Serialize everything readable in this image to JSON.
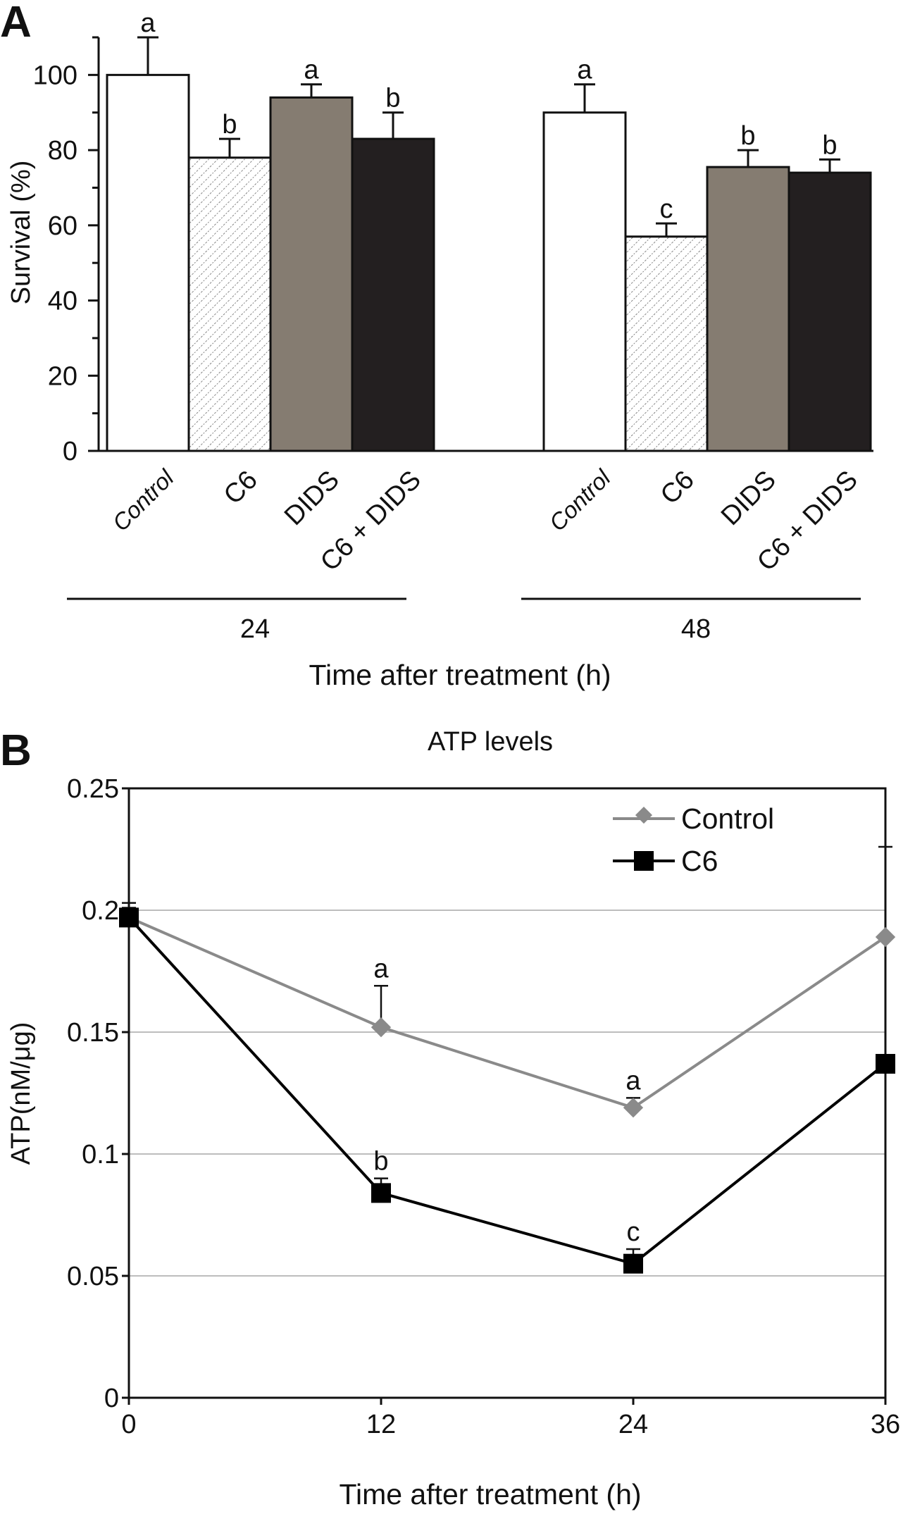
{
  "colors": {
    "axis": "#111111",
    "control_bar": "#ffffff",
    "c6_bar": "#ffffff",
    "dids_bar": "#857c71",
    "c6_dids_bar": "#231f20",
    "control_line": "#8a8a8a",
    "c6_line": "#000000",
    "grid": "#bdbdbd"
  },
  "chart_data": [
    {
      "type": "bar",
      "panel_label": "A",
      "title": "",
      "ylabel": "Survival (%)",
      "xlabel": "Time after treatment (h)",
      "ylim": [
        0,
        110
      ],
      "yticks": [
        0,
        20,
        40,
        60,
        80,
        100
      ],
      "ytick_labels": [
        "0",
        "20",
        "40",
        "60",
        "80",
        "100"
      ],
      "categories": [
        "Control",
        "C6",
        "DIDS",
        "C6 + DIDS"
      ],
      "groups": [
        {
          "label": "24",
          "values": [
            100,
            78,
            94,
            83
          ],
          "errors": [
            10,
            5,
            3.5,
            7
          ],
          "letters": [
            "a",
            "b",
            "a",
            "b"
          ]
        },
        {
          "label": "48",
          "values": [
            90,
            57,
            75.5,
            74
          ],
          "errors": [
            7.5,
            3.5,
            4.5,
            3.5
          ],
          "letters": [
            "a",
            "c",
            "b",
            "b"
          ]
        }
      ]
    },
    {
      "type": "line",
      "panel_label": "B",
      "title": "ATP levels",
      "ylabel": "ATP(nM/μg)",
      "xlabel": "Time after treatment (h)",
      "x": [
        0,
        12,
        24,
        36
      ],
      "xlim": [
        0,
        36
      ],
      "ylim": [
        0,
        0.25
      ],
      "yticks": [
        0,
        0.05,
        0.1,
        0.15,
        0.2,
        0.25
      ],
      "ytick_labels": [
        "0",
        "0.05",
        "0.1",
        "0.15",
        "0.2",
        "0.25"
      ],
      "xtick_labels": [
        "0",
        "12",
        "24",
        "36"
      ],
      "grid": true,
      "legend_position": "top-right",
      "series": [
        {
          "name": "Control",
          "marker": "diamond",
          "values": [
            0.197,
            0.152,
            0.119,
            0.189
          ],
          "errors": [
            0.006,
            0.017,
            0.004,
            0.037
          ],
          "letters": [
            "",
            "a",
            "a",
            ""
          ]
        },
        {
          "name": "C6",
          "marker": "square",
          "values": [
            0.197,
            0.084,
            0.055,
            0.137
          ],
          "errors": [
            0.004,
            0.006,
            0.006,
            0.0
          ],
          "letters": [
            "",
            "b",
            "c",
            ""
          ]
        }
      ]
    }
  ]
}
